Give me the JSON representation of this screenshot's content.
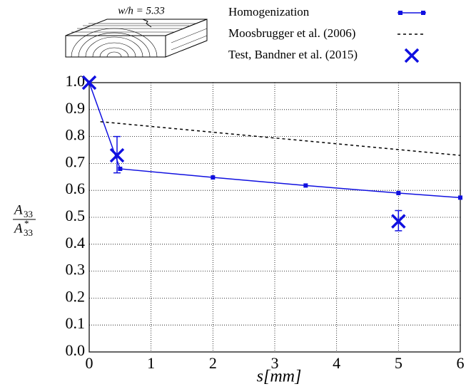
{
  "chart_data": {
    "type": "line",
    "annotation": "w/h = 5.33",
    "xlabel": "s[mm]",
    "ylabel": {
      "numerator": {
        "base": "A",
        "sub": "33"
      },
      "denominator": {
        "base": "A",
        "sup": "*",
        "sub": "33"
      }
    },
    "xlim": [
      0,
      6
    ],
    "ylim": [
      0,
      1
    ],
    "xticks": [
      0,
      1,
      2,
      3,
      4,
      5,
      6
    ],
    "yticks": [
      {
        "value": 0,
        "label": "0.0"
      },
      0.1,
      0.2,
      0.3,
      0.4,
      0.5,
      0.6,
      0.7,
      0.8,
      0.9,
      {
        "value": 1,
        "label": "1.0"
      }
    ],
    "grid": true,
    "legend_position": "top",
    "series": [
      {
        "name": "Homogenization",
        "color": "#1010e0",
        "style": "solid",
        "marker": "square",
        "x": [
          0,
          0.5,
          2,
          3.5,
          5,
          6
        ],
        "values": [
          1.0,
          0.68,
          0.648,
          0.618,
          0.59,
          0.573
        ]
      },
      {
        "name": "Moosbrugger et al. (2006)",
        "color": "#000000",
        "style": "dashed",
        "marker": "none",
        "x": [
          0.18,
          6
        ],
        "values": [
          0.855,
          0.73
        ]
      },
      {
        "name": "Test, Bandner et al. (2015)",
        "color": "#1010e0",
        "style": "none",
        "marker": "x",
        "x": [
          0,
          0.45,
          5
        ],
        "values": [
          1.0,
          0.73,
          0.485
        ],
        "yerr_lower": [
          null,
          0.065,
          0.035
        ],
        "yerr_upper": [
          null,
          0.07,
          0.04
        ]
      }
    ]
  }
}
